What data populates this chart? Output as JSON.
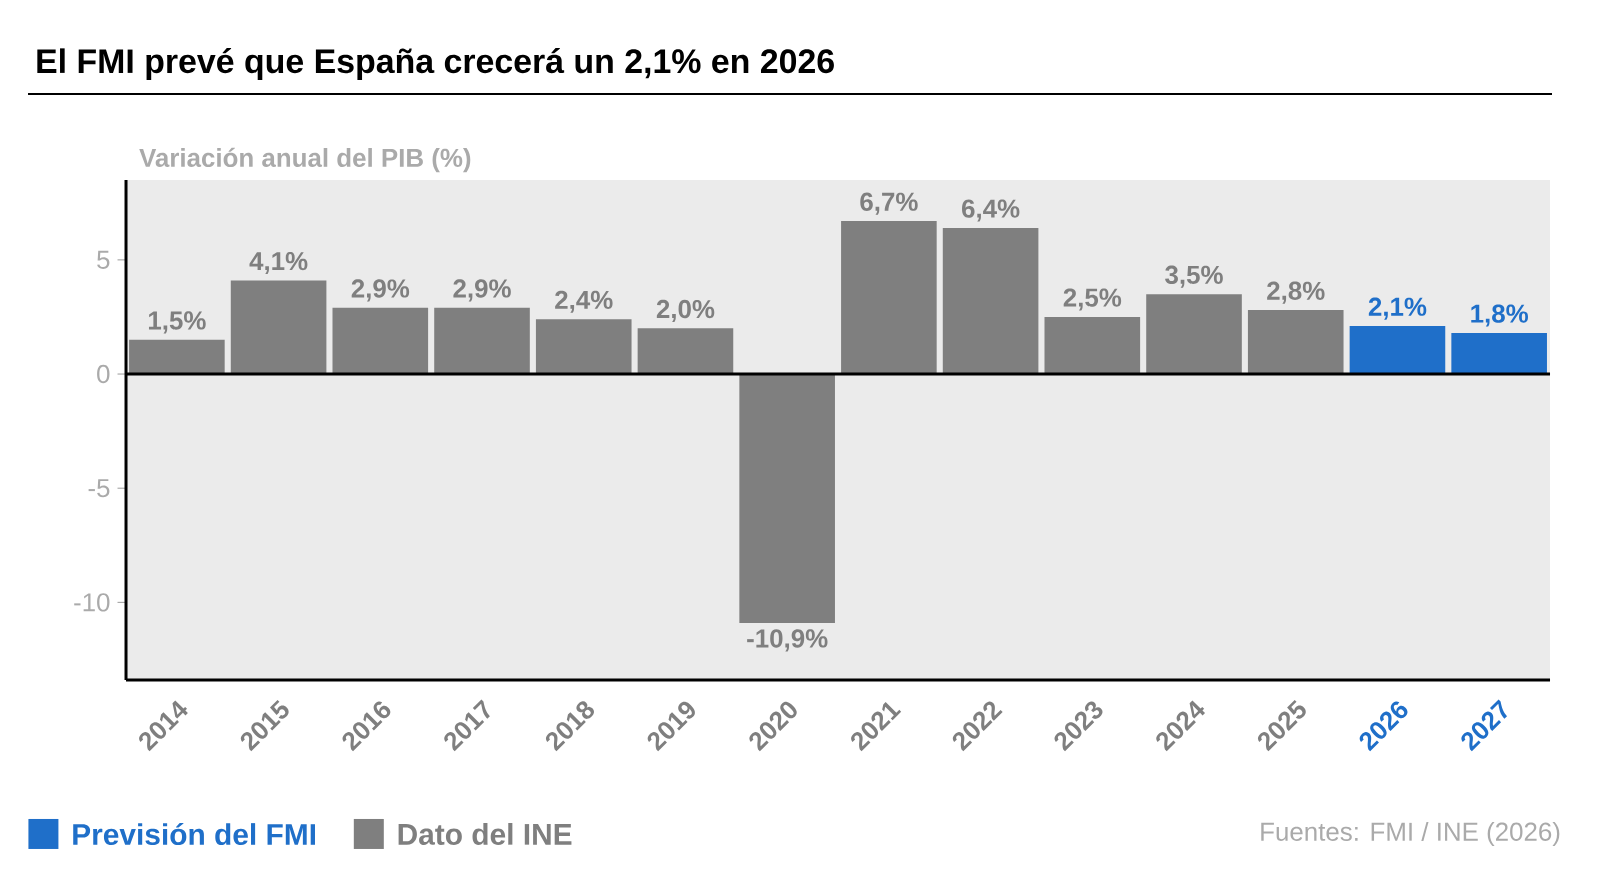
{
  "chart_data": {
    "type": "bar",
    "title": "El FMI prevé que España crecerá un 2,1% en 2026",
    "ylabel": "Variación anual del PIB (%)",
    "categories": [
      "2014",
      "2015",
      "2016",
      "2017",
      "2018",
      "2019",
      "2020",
      "2021",
      "2022",
      "2023",
      "2024",
      "2025",
      "2026",
      "2027"
    ],
    "series": [
      {
        "name": "Previsión del FMI",
        "color": "#1f6fc9",
        "values": [
          null,
          null,
          null,
          null,
          null,
          null,
          null,
          null,
          null,
          null,
          null,
          null,
          2.1,
          1.8
        ],
        "value_labels": [
          null,
          null,
          null,
          null,
          null,
          null,
          null,
          null,
          null,
          null,
          null,
          null,
          "2,1%",
          "1,8%"
        ]
      },
      {
        "name": "Dato del INE",
        "color": "#7f7f7f",
        "values": [
          1.5,
          4.1,
          2.9,
          2.9,
          2.4,
          2.0,
          -10.9,
          6.7,
          6.4,
          2.5,
          3.5,
          2.8,
          null,
          null
        ],
        "value_labels": [
          "1,5%",
          "4,1%",
          "2,9%",
          "2,9%",
          "2,4%",
          "2,0%",
          "-10,9%",
          "6,7%",
          "6,4%",
          "2,5%",
          "3,5%",
          "2,8%",
          null,
          null
        ]
      }
    ],
    "ylim": [
      -13.4,
      8.5
    ],
    "yticks": [
      -10,
      -5,
      0,
      5
    ],
    "ref_lines": [
      {
        "axis": "y",
        "value": 0,
        "color": "#000000"
      }
    ],
    "legend": "bottom left",
    "annotations": [
      "Fuentes: FMI / INE (2026)"
    ]
  }
}
